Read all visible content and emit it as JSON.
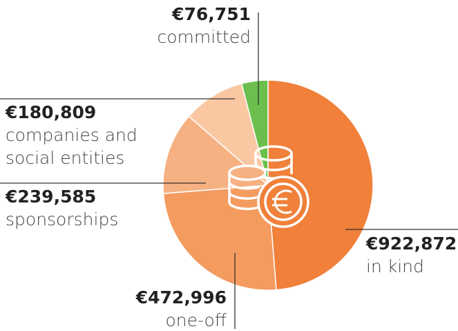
{
  "chart_data": {
    "type": "pie",
    "categories": [
      "in kind",
      "one-off",
      "sponsorships",
      "companies and social entities",
      "committed"
    ],
    "values": [
      922872,
      472996,
      239585,
      180809,
      76751
    ],
    "value_labels": [
      "€922,872",
      "€472,996",
      "€239,585",
      "€180,809",
      "€76,751"
    ],
    "colors": [
      "#f0803a",
      "#f49b60",
      "#f6b183",
      "#f9c8a2",
      "#6cbf4c"
    ]
  }
}
